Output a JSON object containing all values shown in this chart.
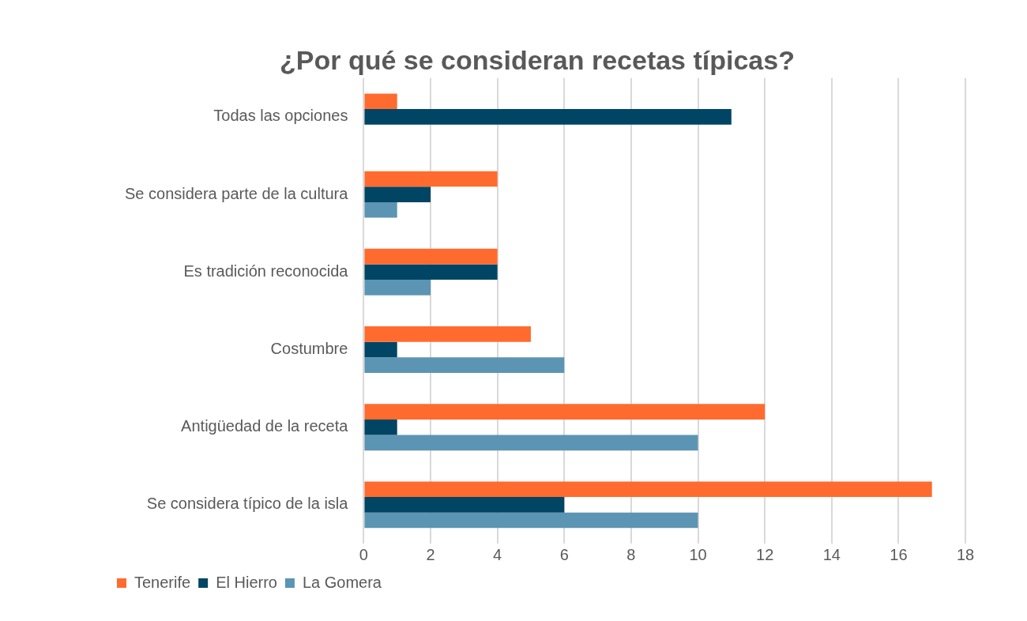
{
  "chart_data": {
    "type": "bar",
    "orientation": "horizontal",
    "title": "¿Por qué se consideran recetas típicas?",
    "categories": [
      "Todas las opciones",
      "Se considera parte de la cultura",
      "Es tradición reconocida",
      "Costumbre",
      "Antigüedad de la receta",
      "Se considera típico de la isla"
    ],
    "series": [
      {
        "name": "Tenerife",
        "color": "#ff6b2f",
        "values": [
          1,
          4,
          4,
          5,
          12,
          17
        ]
      },
      {
        "name": "El Hierro",
        "color": "#004564",
        "values": [
          11,
          2,
          4,
          1,
          1,
          6
        ]
      },
      {
        "name": "La Gomera",
        "color": "#5b95b3",
        "values": [
          0,
          1,
          2,
          6,
          10,
          10
        ]
      }
    ],
    "xlim": [
      0,
      18
    ],
    "xticks": [
      0,
      2,
      4,
      6,
      8,
      10,
      12,
      14,
      16,
      18
    ],
    "grid": "x",
    "legend": "bottom left"
  }
}
